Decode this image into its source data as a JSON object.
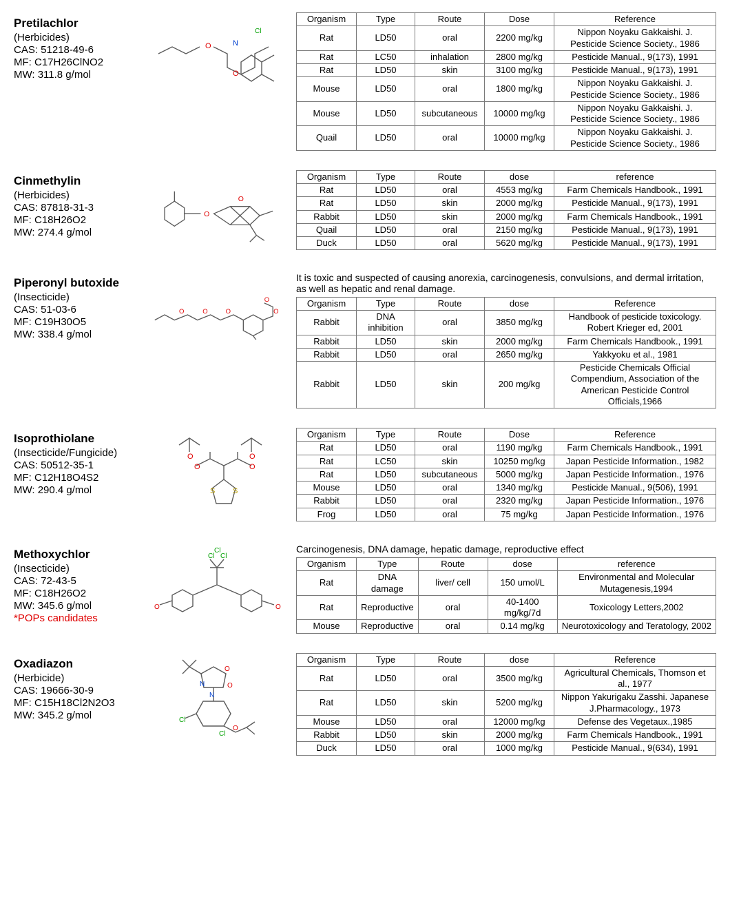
{
  "compounds": [
    {
      "name": "Pretilachlor",
      "type": "(Herbicides)",
      "cas": "CAS: 51218-49-6",
      "mf": "MF: C17H26ClNO2",
      "mw": "MW: 311.8 g/mol",
      "note": "",
      "pops": "",
      "headers": [
        "Organism",
        "Type",
        "Route",
        "Dose",
        "Reference"
      ],
      "rows": [
        [
          "Rat",
          "LD50",
          "oral",
          "2200 mg/kg",
          "Nippon Noyaku Gakkaishi. J. Pesticide Science Society., 1986"
        ],
        [
          "Rat",
          "LC50",
          "inhalation",
          "2800 mg/kg",
          "Pesticide Manual., 9(173), 1991"
        ],
        [
          "Rat",
          "LD50",
          "skin",
          "3100 mg/kg",
          "Pesticide Manual., 9(173), 1991"
        ],
        [
          "Mouse",
          "LD50",
          "oral",
          "1800 mg/kg",
          "Nippon Noyaku Gakkaishi. J. Pesticide Science Society., 1986"
        ],
        [
          "Mouse",
          "LD50",
          "subcutaneous",
          "10000 mg/kg",
          "Nippon Noyaku Gakkaishi. J. Pesticide Science Society., 1986"
        ],
        [
          "Quail",
          "LD50",
          "oral",
          "10000 mg/kg",
          "Nippon Noyaku Gakkaishi. J. Pesticide Science Society., 1986"
        ]
      ]
    },
    {
      "name": "Cinmethylin",
      "type": "(Herbicides)",
      "cas": "CAS: 87818-31-3",
      "mf": "MF: C18H26O2",
      "mw": "MW: 274.4 g/mol",
      "note": "",
      "pops": "",
      "headers": [
        "Organism",
        "Type",
        "Route",
        "dose",
        "reference"
      ],
      "rows": [
        [
          "Rat",
          "LD50",
          "oral",
          "4553 mg/kg",
          "Farm Chemicals Handbook., 1991"
        ],
        [
          "Rat",
          "LD50",
          "skin",
          "2000 mg/kg",
          "Pesticide Manual., 9(173), 1991"
        ],
        [
          "Rabbit",
          "LD50",
          "skin",
          "2000 mg/kg",
          "Farm Chemicals Handbook., 1991"
        ],
        [
          "Quail",
          "LD50",
          "oral",
          "2150 mg/kg",
          "Pesticide Manual., 9(173), 1991"
        ],
        [
          "Duck",
          "LD50",
          "oral",
          "5620 mg/kg",
          "Pesticide Manual., 9(173), 1991"
        ]
      ]
    },
    {
      "name": "Piperonyl butoxide",
      "type": "(Insecticide)",
      "cas": "CAS: 51-03-6",
      "mf": "MF: C19H30O5",
      "mw": "MW: 338.4 g/mol",
      "note": "It is toxic and suspected of causing anorexia, carcinogenesis, convulsions, and dermal irritation, as well as hepatic and renal damage.",
      "pops": "",
      "headers": [
        "Organism",
        "Type",
        "Route",
        "dose",
        "Reference"
      ],
      "rows": [
        [
          "Rabbit",
          "DNA inhibition",
          "oral",
          "3850 mg/kg",
          "Handbook of pesticide toxicology. Robert Krieger ed, 2001"
        ],
        [
          "Rabbit",
          "LD50",
          "skin",
          "2000 mg/kg",
          "Farm Chemicals Handbook., 1991"
        ],
        [
          "Rabbit",
          "LD50",
          "oral",
          "2650 mg/kg",
          "Yakkyoku et al., 1981"
        ],
        [
          "Rabbit",
          "LD50",
          "skin",
          "200 mg/kg",
          "Pesticide Chemicals Official Compendium, Association of the American Pesticide Control Officials,1966"
        ]
      ]
    },
    {
      "name": "Isoprothiolane",
      "type": "(Insecticide/Fungicide)",
      "cas": "CAS: 50512-35-1",
      "mf": "MF: C12H18O4S2",
      "mw": "MW: 290.4 g/mol",
      "note": "",
      "pops": "",
      "headers": [
        "Organism",
        "Type",
        "Route",
        "Dose",
        "Reference"
      ],
      "rows": [
        [
          "Rat",
          "LD50",
          "oral",
          "1190 mg/kg",
          "Farm Chemicals Handbook., 1991"
        ],
        [
          "Rat",
          "LC50",
          "skin",
          "10250 mg/kg",
          "Japan Pesticide Information., 1982"
        ],
        [
          "Rat",
          "LD50",
          "subcutaneous",
          "5000 mg/kg",
          "Japan Pesticide Information., 1976"
        ],
        [
          "Mouse",
          "LD50",
          "oral",
          "1340 mg/kg",
          "Pesticide Manual., 9(506), 1991"
        ],
        [
          "Rabbit",
          "LD50",
          "oral",
          "2320 mg/kg",
          "Japan Pesticide Information., 1976"
        ],
        [
          "Frog",
          "LD50",
          "oral",
          "75 mg/kg",
          "Japan Pesticide Information., 1976"
        ]
      ]
    },
    {
      "name": "Methoxychlor",
      "type": "(Insecticide)",
      "cas": "CAS: 72-43-5",
      "mf": "MF: C18H26O2",
      "mw": "MW: 345.6 g/mol",
      "note": "Carcinogenesis, DNA damage, hepatic damage, reproductive effect",
      "pops": "*POPs candidates",
      "headers": [
        "Organism",
        "Type",
        "Route",
        "dose",
        "reference"
      ],
      "rows": [
        [
          "Rat",
          "DNA damage",
          "liver/ cell",
          "150 umol/L",
          "Environmental and Molecular Mutagenesis,1994"
        ],
        [
          "Rat",
          "Reproductive",
          "oral",
          "40-1400 mg/kg/7d",
          "Toxicology Letters,2002"
        ],
        [
          "Mouse",
          "Reproductive",
          "oral",
          "0.14 mg/kg",
          "Neurotoxicology and Teratology, 2002"
        ]
      ]
    },
    {
      "name": "Oxadiazon",
      "type": "(Herbicide)",
      "cas": "CAS: 19666-30-9",
      "mf": "MF: C15H18Cl2N2O3",
      "mw": "MW: 345.2 g/mol",
      "note": "",
      "pops": "",
      "headers": [
        "Organism",
        "Type",
        "Route",
        "dose",
        "Reference"
      ],
      "rows": [
        [
          "Rat",
          "LD50",
          "oral",
          "3500 mg/kg",
          "Agricultural Chemicals, Thomson et al., 1977"
        ],
        [
          "Rat",
          "LD50",
          "skin",
          "5200 mg/kg",
          "Nippon Yakurigaku Zasshi. Japanese J.Pharmacology., 1973"
        ],
        [
          "Mouse",
          "LD50",
          "oral",
          "12000 mg/kg",
          "Defense des Vegetaux.,1985"
        ],
        [
          "Rabbit",
          "LD50",
          "skin",
          "2000 mg/kg",
          "Farm Chemicals Handbook., 1991"
        ],
        [
          "Duck",
          "LD50",
          "oral",
          "1000 mg/kg",
          "Pesticide Manual., 9(634), 1991"
        ]
      ]
    }
  ],
  "svg_stroke": "#5b5b5b",
  "svg_oxygen": "#e00000",
  "svg_nitrogen": "#0040d0",
  "svg_chlorine": "#00a000",
  "svg_sulfur": "#bba000"
}
